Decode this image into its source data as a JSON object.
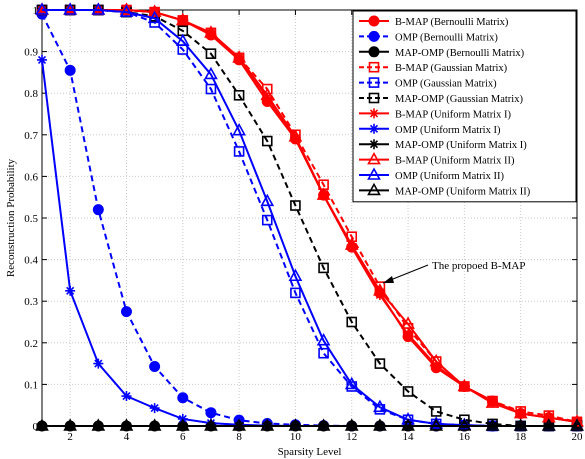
{
  "chart_data": {
    "type": "line",
    "title": "",
    "xlabel": "Sparsity Level",
    "ylabel": "Reconstruction Probability",
    "xlim": [
      1,
      20
    ],
    "ylim": [
      0,
      1
    ],
    "xticks": [
      2,
      4,
      6,
      8,
      10,
      12,
      14,
      16,
      18,
      20
    ],
    "yticks": [
      0,
      0.1,
      0.2,
      0.3,
      0.4,
      0.5,
      0.6,
      0.7,
      0.8,
      0.9,
      1
    ],
    "grid": true,
    "legend_position": "top-right",
    "x": [
      1,
      2,
      3,
      4,
      5,
      6,
      7,
      8,
      9,
      10,
      11,
      12,
      13,
      14,
      15,
      16,
      17,
      18,
      19,
      20
    ],
    "annotation": {
      "text": "The propoed B-MAP",
      "points_to_x": 13,
      "points_to_y": 0.32
    },
    "series": [
      {
        "name": "B-MAP (Bernoulli Matrix)",
        "color": "#ff0000",
        "dash": "solid",
        "marker": "circle-filled",
        "values": [
          1,
          1,
          1,
          1,
          0.995,
          0.975,
          0.94,
          0.88,
          0.78,
          0.69,
          0.555,
          0.43,
          0.32,
          0.215,
          0.14,
          0.095,
          0.06,
          0.03,
          0.02,
          0.01
        ]
      },
      {
        "name": "OMP (Bernoulli Matrix)",
        "color": "#0000ff",
        "dash": "dashed",
        "marker": "circle-filled",
        "values": [
          0.99,
          0.855,
          0.52,
          0.275,
          0.143,
          0.068,
          0.032,
          0.014,
          0.006,
          0.003,
          0.001,
          0,
          0,
          0,
          0,
          0,
          0,
          0,
          0,
          0
        ]
      },
      {
        "name": "MAP-OMP (Bernoulli Matrix)",
        "color": "#000000",
        "dash": "solid",
        "marker": "circle-filled",
        "values": [
          0,
          0,
          0,
          0,
          0,
          0,
          0,
          0,
          0,
          0,
          0,
          0,
          0,
          0,
          0,
          0,
          0,
          0,
          0,
          0
        ]
      },
      {
        "name": "B-MAP (Gaussian Matrix)",
        "color": "#ff0000",
        "dash": "dashed",
        "marker": "square-open",
        "values": [
          1,
          1,
          1,
          1,
          0.995,
          0.975,
          0.945,
          0.885,
          0.81,
          0.7,
          0.58,
          0.455,
          0.335,
          0.235,
          0.155,
          0.095,
          0.06,
          0.035,
          0.025,
          0.01
        ]
      },
      {
        "name": "OMP (Gaussian Matrix)",
        "color": "#0000ff",
        "dash": "dashed",
        "marker": "square-open",
        "values": [
          1,
          1,
          1,
          0.995,
          0.97,
          0.905,
          0.81,
          0.66,
          0.495,
          0.32,
          0.175,
          0.095,
          0.04,
          0.015,
          0.005,
          0.002,
          0,
          0,
          0,
          0
        ]
      },
      {
        "name": "MAP-OMP (Gaussian Matrix)",
        "color": "#000000",
        "dash": "dashed",
        "marker": "square-open",
        "values": [
          1,
          1,
          1,
          0.995,
          0.985,
          0.95,
          0.895,
          0.795,
          0.685,
          0.53,
          0.38,
          0.25,
          0.15,
          0.083,
          0.035,
          0.015,
          0.005,
          0,
          0,
          0
        ]
      },
      {
        "name": "B-MAP (Uniform Matrix I)",
        "color": "#ff0000",
        "dash": "solid",
        "marker": "asterisk",
        "values": [
          1,
          1,
          1,
          1,
          0.995,
          0.975,
          0.945,
          0.885,
          0.79,
          0.69,
          0.555,
          0.43,
          0.315,
          0.22,
          0.145,
          0.095,
          0.06,
          0.03,
          0.02,
          0.01
        ]
      },
      {
        "name": "OMP (Uniform Matrix I)",
        "color": "#0000ff",
        "dash": "solid",
        "marker": "asterisk",
        "values": [
          0.88,
          0.325,
          0.15,
          0.072,
          0.043,
          0.017,
          0.007,
          0.003,
          0.001,
          0,
          0,
          0,
          0,
          0,
          0,
          0,
          0,
          0,
          0,
          0
        ]
      },
      {
        "name": "MAP-OMP (Uniform Matrix I)",
        "color": "#000000",
        "dash": "solid",
        "marker": "asterisk",
        "values": [
          0,
          0,
          0,
          0,
          0,
          0,
          0,
          0,
          0,
          0,
          0,
          0,
          0,
          0,
          0,
          0,
          0,
          0,
          0,
          0
        ]
      },
      {
        "name": "B-MAP (Uniform Matrix II)",
        "color": "#ff0000",
        "dash": "solid",
        "marker": "triangle-open",
        "values": [
          1,
          1,
          1,
          1,
          0.995,
          0.975,
          0.945,
          0.885,
          0.795,
          0.695,
          0.555,
          0.435,
          0.325,
          0.245,
          0.155,
          0.095,
          0.055,
          0.03,
          0.02,
          0.01
        ]
      },
      {
        "name": "OMP (Uniform Matrix II)",
        "color": "#0000ff",
        "dash": "solid",
        "marker": "triangle-open",
        "values": [
          1,
          1,
          1,
          0.995,
          0.98,
          0.925,
          0.845,
          0.71,
          0.54,
          0.36,
          0.205,
          0.1,
          0.045,
          0.015,
          0.005,
          0.002,
          0,
          0,
          0,
          0
        ]
      },
      {
        "name": "MAP-OMP (Uniform Matrix II)",
        "color": "#000000",
        "dash": "solid",
        "marker": "triangle-open",
        "values": [
          0,
          0,
          0,
          0,
          0,
          0,
          0,
          0,
          0,
          0,
          0,
          0,
          0,
          0,
          0,
          0,
          0,
          0,
          0,
          0
        ]
      }
    ]
  }
}
